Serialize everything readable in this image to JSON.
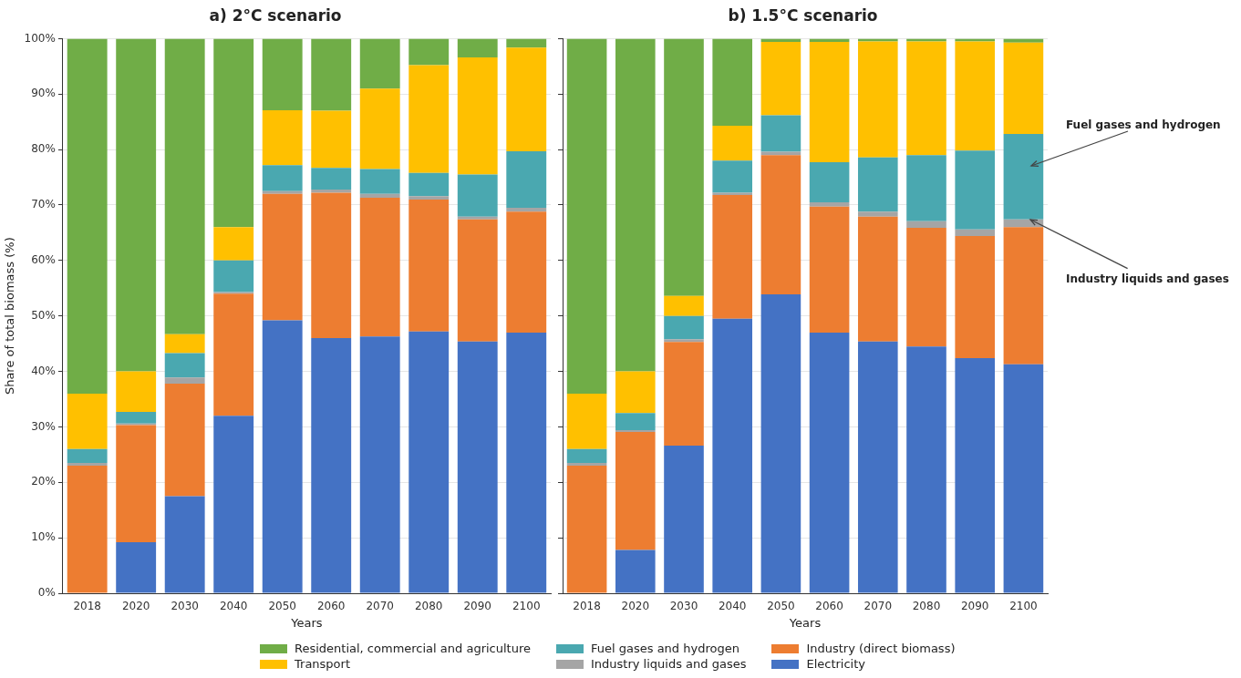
{
  "chart_data": [
    {
      "type": "bar",
      "title": "a) 2°C scenario",
      "xlabel": "Years",
      "ylabel": "Share of total biomass (%)",
      "stacked": true,
      "grid": "y",
      "legend": "bottom",
      "categories": [
        "2018",
        "2020",
        "2030",
        "2040",
        "2050",
        "2060",
        "2070",
        "2080",
        "2090",
        "2100"
      ],
      "ylim": [
        0,
        100
      ],
      "yticks": [
        {
          "value": 0,
          "label": "0%"
        },
        {
          "value": 10,
          "label": "10%"
        },
        {
          "value": 20,
          "label": "20%"
        },
        {
          "value": 30,
          "label": "30%"
        },
        {
          "value": 40,
          "label": "40%"
        },
        {
          "value": 50,
          "label": "50%"
        },
        {
          "value": 60,
          "label": "60%"
        },
        {
          "value": 70,
          "label": "70%"
        },
        {
          "value": 80,
          "label": "80%"
        },
        {
          "value": 90,
          "label": "90%"
        },
        {
          "value": 100,
          "label": "100%"
        }
      ],
      "series": [
        {
          "name": "Electricity",
          "color": "#4472c4",
          "values": [
            0,
            9.2,
            17.5,
            32,
            49.2,
            46,
            46.3,
            47.2,
            45.4,
            47
          ]
        },
        {
          "name": "Industry (direct biomass)",
          "color": "#ed7d31",
          "values": [
            23,
            21.1,
            20.3,
            22,
            22.8,
            26.2,
            25,
            23.8,
            22,
            21.8
          ]
        },
        {
          "name": "Industry liquids and gases",
          "color": "#a5a5a5",
          "values": [
            0.5,
            0.3,
            1.1,
            0.3,
            0.5,
            0.6,
            0.7,
            0.6,
            0.5,
            0.7
          ]
        },
        {
          "name": "Fuel gases and hydrogen",
          "color": "#4aa8b0",
          "values": [
            2.5,
            2.1,
            4.4,
            5.7,
            4.7,
            3.9,
            4.5,
            4.2,
            7.6,
            10.2
          ]
        },
        {
          "name": "Transport",
          "color": "#ffc000",
          "values": [
            10,
            7.3,
            3.4,
            6,
            9.9,
            10.3,
            14.5,
            19.4,
            21.1,
            18.7
          ]
        },
        {
          "name": "Residential, commercial and agriculture",
          "color": "#70ad47",
          "values": [
            64,
            60,
            53.3,
            34,
            12.9,
            13,
            9,
            4.8,
            3.4,
            1.6
          ]
        }
      ]
    },
    {
      "type": "bar",
      "title": "b) 1.5°C scenario",
      "xlabel": "Years",
      "stacked": true,
      "grid": "y",
      "tick_labels": "x",
      "categories": [
        "2018",
        "2020",
        "2030",
        "2040",
        "2050",
        "2060",
        "2070",
        "2080",
        "2090",
        "2100"
      ],
      "ylim": [
        0,
        100
      ],
      "yticks": [
        {
          "value": 0,
          "label": null
        },
        {
          "value": 10,
          "label": null
        },
        {
          "value": 20,
          "label": null
        },
        {
          "value": 30,
          "label": null
        },
        {
          "value": 40,
          "label": null
        },
        {
          "value": 50,
          "label": null
        },
        {
          "value": 60,
          "label": null
        },
        {
          "value": 70,
          "label": null
        },
        {
          "value": 80,
          "label": null
        },
        {
          "value": 90,
          "label": null
        },
        {
          "value": 100,
          "label": null
        }
      ],
      "series": [
        {
          "color": "#4472c4",
          "values": [
            0,
            7.8,
            26.6,
            49.5,
            53.9,
            47,
            45.4,
            44.5,
            42.4,
            41.3
          ]
        },
        {
          "color": "#ed7d31",
          "values": [
            23,
            21.3,
            18.7,
            22.3,
            25.1,
            22.7,
            22.5,
            21.4,
            22,
            24.7
          ]
        },
        {
          "color": "#a5a5a5",
          "values": [
            0.5,
            0.3,
            0.5,
            0.4,
            0.6,
            0.8,
            0.9,
            1.2,
            1.2,
            1.4
          ]
        },
        {
          "color": "#4aa8b0",
          "values": [
            2.5,
            3.1,
            4.2,
            5.8,
            6.6,
            7.2,
            9.8,
            11.9,
            14.2,
            15.4
          ]
        },
        {
          "color": "#ffc000",
          "values": [
            10,
            7.5,
            3.6,
            6.3,
            13.2,
            21.7,
            20.9,
            20.5,
            19.7,
            16.5
          ]
        },
        {
          "color": "#70ad47",
          "values": [
            64,
            60,
            46.4,
            15.7,
            0.6,
            0.6,
            0.5,
            0.5,
            0.5,
            0.7
          ]
        }
      ],
      "annotations": [
        "Fuel gases and hydrogen",
        {
          "text": "Industry liquids and gases",
          "x": "2100",
          "y": 67.4
        }
      ]
    }
  ]
}
